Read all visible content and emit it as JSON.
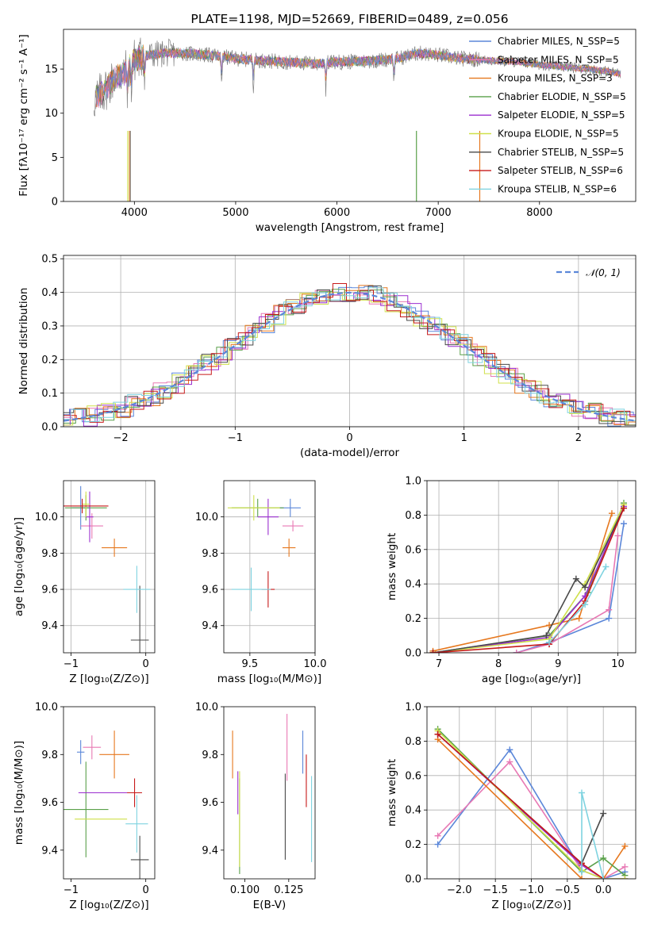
{
  "figure_title": "PLATE=1198, MJD=52669, FIBERID=0489, z=0.056",
  "colors": {
    "Chabrier MILES": "#5b87d9",
    "Salpeter MILES": "#e879b4",
    "Kroupa MILES": "#e6781f",
    "Chabrier ELODIE": "#5aa04a",
    "Salpeter ELODIE": "#9b2fd0",
    "Kroupa ELODIE": "#cfe04a",
    "Chabrier STELIB": "#4a4a4a",
    "Salpeter STELIB": "#c71a1a",
    "Kroupa STELIB": "#7fd3e0",
    "spectrum": "#808080",
    "normal_curve": "#5b87d9"
  },
  "chart_data": [
    {
      "id": "spectrum",
      "type": "line",
      "title": "PLATE=1198, MJD=52669, FIBERID=0489, z=0.056",
      "xlabel": "wavelength [Angstrom, rest frame]",
      "ylabel": "Flux [fλ10⁻¹⁷ erg cm⁻² s⁻¹ A⁻¹]",
      "xlim": [
        3300,
        8950
      ],
      "ylim": [
        0,
        19.5
      ],
      "xticks": [
        4000,
        5000,
        6000,
        7000,
        8000
      ],
      "yticks": [
        0,
        5,
        10,
        15
      ],
      "legend_position": "top-right",
      "legend": [
        "Chabrier MILES, N_SSP=5",
        "Salpeter MILES, N_SSP=5",
        "Kroupa MILES, N_SSP=3",
        "Chabrier ELODIE, N_SSP=5",
        "Salpeter ELODIE, N_SSP=5",
        "Kroupa ELODIE, N_SSP=5",
        "Chabrier STELIB, N_SSP=5",
        "Salpeter STELIB, N_SSP=6",
        "Kroupa STELIB, N_SSP=6"
      ],
      "continuum": {
        "x": [
          3600,
          3700,
          3800,
          3900,
          4000,
          4100,
          4300,
          4500,
          4800,
          5000,
          5200,
          5500,
          5800,
          6000,
          6300,
          6600,
          6800,
          7000,
          7200,
          7500,
          7800,
          8000,
          8300,
          8500,
          8800
        ],
        "y": [
          11.5,
          12.5,
          14.0,
          14.5,
          16.0,
          16.5,
          16.8,
          16.8,
          16.5,
          16.2,
          16.0,
          15.8,
          15.6,
          15.8,
          15.9,
          16.2,
          16.8,
          16.6,
          16.2,
          16.0,
          15.8,
          15.5,
          15.2,
          15.0,
          14.5
        ]
      }
    },
    {
      "id": "residuals",
      "type": "histogram",
      "xlabel": "(data-model)/error",
      "ylabel": "Normed distribution",
      "xlim": [
        -2.5,
        2.5
      ],
      "ylim": [
        0,
        0.51
      ],
      "xticks": [
        -2,
        -1,
        0,
        1,
        2
      ],
      "yticks": [
        0.0,
        0.1,
        0.2,
        0.3,
        0.4,
        0.5
      ],
      "grid": true,
      "legend_position": "top-right",
      "legend": [
        "𝒩(0, 1)"
      ]
    },
    {
      "id": "age-vs-Z",
      "type": "errorbar",
      "xlabel": "Z [log₁₀(Z/Z⊙)]",
      "ylabel": "age  [log₁₀(age/yr)]",
      "xlim": [
        -1.1,
        0.12
      ],
      "ylim": [
        9.25,
        10.2
      ],
      "xticks": [
        -1,
        0
      ],
      "yticks": [
        9.4,
        9.6,
        9.8,
        10.0
      ],
      "grid": true,
      "points": [
        {
          "model": "Chabrier MILES",
          "x": -0.87,
          "y": 10.05,
          "xerr": 0.12,
          "yerr": 0.12
        },
        {
          "model": "Salpeter MILES",
          "x": -0.72,
          "y": 9.95,
          "xerr": 0.15,
          "yerr": 0.07
        },
        {
          "model": "Kroupa MILES",
          "x": -0.42,
          "y": 9.83,
          "xerr": 0.17,
          "yerr": 0.05
        },
        {
          "model": "Chabrier ELODIE",
          "x": -0.8,
          "y": 10.05,
          "xerr": 0.28,
          "yerr": 0.07
        },
        {
          "model": "Salpeter ELODIE",
          "x": -0.75,
          "y": 10.0,
          "xerr": 0.05,
          "yerr": 0.14
        },
        {
          "model": "Kroupa ELODIE",
          "x": -0.8,
          "y": 10.07,
          "xerr": 0.05,
          "yerr": 0.07
        },
        {
          "model": "Chabrier STELIB",
          "x": -0.08,
          "y": 9.32,
          "xerr": 0.12,
          "yerr": 0.3
        },
        {
          "model": "Salpeter STELIB",
          "x": -0.85,
          "y": 10.06,
          "xerr": 0.35,
          "yerr": 0.04
        },
        {
          "model": "Kroupa STELIB",
          "x": -0.12,
          "y": 9.6,
          "xerr": 0.18,
          "yerr": 0.13
        }
      ]
    },
    {
      "id": "age-vs-mass",
      "type": "errorbar",
      "xlabel": "mass [log₁₀(M/M⊙)]",
      "ylabel": "",
      "xlim": [
        9.3,
        10.0
      ],
      "ylim": [
        9.25,
        10.2
      ],
      "xticks": [
        9.5,
        10.0
      ],
      "yticks": [
        9.4,
        9.6,
        9.8,
        10.0
      ],
      "grid": true,
      "points": [
        {
          "model": "Chabrier MILES",
          "x": 9.81,
          "y": 10.05,
          "xerr": 0.08,
          "yerr": 0.05
        },
        {
          "model": "Salpeter MILES",
          "x": 9.83,
          "y": 9.95,
          "xerr": 0.08,
          "yerr": 0.03
        },
        {
          "model": "Kroupa MILES",
          "x": 9.8,
          "y": 9.83,
          "xerr": 0.05,
          "yerr": 0.05
        },
        {
          "model": "Chabrier ELODIE",
          "x": 9.56,
          "y": 10.05,
          "xerr": 0.2,
          "yerr": 0.05
        },
        {
          "model": "Salpeter ELODIE",
          "x": 9.64,
          "y": 10.0,
          "xerr": 0.08,
          "yerr": 0.1
        },
        {
          "model": "Kroupa ELODIE",
          "x": 9.53,
          "y": 10.05,
          "xerr": 0.2,
          "yerr": 0.07
        },
        {
          "model": "Chabrier STELIB",
          "x": 9.36,
          "y": 9.32,
          "xerr": 0.0,
          "yerr": 0.0
        },
        {
          "model": "Salpeter STELIB",
          "x": 9.64,
          "y": 9.6,
          "xerr": 0.05,
          "yerr": 0.1
        },
        {
          "model": "Kroupa STELIB",
          "x": 9.51,
          "y": 9.6,
          "xerr": 0.15,
          "yerr": 0.12
        }
      ]
    },
    {
      "id": "massweight-vs-age",
      "type": "line",
      "xlabel": "age  [log₁₀(age/yr)]",
      "ylabel": "mass weight",
      "xlim": [
        6.8,
        10.3
      ],
      "ylim": [
        0,
        1.0
      ],
      "xticks": [
        7,
        8,
        9,
        10
      ],
      "yticks": [
        0.0,
        0.2,
        0.4,
        0.6,
        0.8,
        1.0
      ],
      "grid": true,
      "series": [
        {
          "model": "Chabrier MILES",
          "x": [
            8.3,
            8.85,
            9.85,
            10.1
          ],
          "y": [
            0.0,
            0.06,
            0.2,
            0.75
          ]
        },
        {
          "model": "Salpeter MILES",
          "x": [
            8.3,
            8.85,
            9.85,
            10.0
          ],
          "y": [
            0.0,
            0.05,
            0.25,
            0.68
          ]
        },
        {
          "model": "Kroupa MILES",
          "x": [
            6.9,
            8.85,
            9.35,
            9.9
          ],
          "y": [
            0.01,
            0.16,
            0.2,
            0.81
          ]
        },
        {
          "model": "Chabrier ELODIE",
          "x": [
            6.9,
            8.85,
            9.5,
            10.1
          ],
          "y": [
            0.0,
            0.1,
            0.35,
            0.87
          ]
        },
        {
          "model": "Salpeter ELODIE",
          "x": [
            6.9,
            8.85,
            9.45,
            10.1
          ],
          "y": [
            0.0,
            0.09,
            0.33,
            0.85
          ]
        },
        {
          "model": "Kroupa ELODIE",
          "x": [
            6.9,
            8.85,
            9.45,
            10.1
          ],
          "y": [
            0.0,
            0.08,
            0.4,
            0.86
          ]
        },
        {
          "model": "Chabrier STELIB",
          "x": [
            6.9,
            8.8,
            9.3,
            9.45,
            10.1
          ],
          "y": [
            0.0,
            0.1,
            0.43,
            0.38,
            0.84
          ]
        },
        {
          "model": "Salpeter STELIB",
          "x": [
            6.9,
            8.85,
            9.45,
            10.1
          ],
          "y": [
            0.0,
            0.05,
            0.3,
            0.84
          ]
        },
        {
          "model": "Kroupa STELIB",
          "x": [
            8.85,
            9.45,
            9.8
          ],
          "y": [
            0.06,
            0.28,
            0.5
          ]
        }
      ]
    },
    {
      "id": "mass-vs-Z",
      "type": "errorbar",
      "xlabel": "Z [log₁₀(Z/Z⊙)]",
      "ylabel": "mass [log₁₀(M/M⊙)]",
      "xlim": [
        -1.1,
        0.12
      ],
      "ylim": [
        9.28,
        10.0
      ],
      "xticks": [
        -1,
        0
      ],
      "yticks": [
        9.4,
        9.6,
        9.8,
        10.0
      ],
      "points": [
        {
          "model": "Chabrier MILES",
          "x": -0.87,
          "y": 9.81,
          "xerr": 0.05,
          "yerr": 0.05
        },
        {
          "model": "Salpeter MILES",
          "x": -0.72,
          "y": 9.83,
          "xerr": 0.12,
          "yerr": 0.05
        },
        {
          "model": "Kroupa MILES",
          "x": -0.42,
          "y": 9.8,
          "xerr": 0.2,
          "yerr": 0.1
        },
        {
          "model": "Chabrier ELODIE",
          "x": -0.8,
          "y": 9.57,
          "xerr": 0.3,
          "yerr": 0.2
        },
        {
          "model": "Salpeter ELODIE",
          "x": -0.55,
          "y": 9.64,
          "xerr": 0.35,
          "yerr": 0.0
        },
        {
          "model": "Kroupa ELODIE",
          "x": -0.6,
          "y": 9.53,
          "xerr": 0.35,
          "yerr": 0.0
        },
        {
          "model": "Chabrier STELIB",
          "x": -0.08,
          "y": 9.36,
          "xerr": 0.12,
          "yerr": 0.1
        },
        {
          "model": "Salpeter STELIB",
          "x": -0.15,
          "y": 9.64,
          "xerr": 0.1,
          "yerr": 0.06
        },
        {
          "model": "Kroupa STELIB",
          "x": -0.12,
          "y": 9.51,
          "xerr": 0.15,
          "yerr": 0.12
        }
      ]
    },
    {
      "id": "mass-vs-EBV",
      "type": "errorbar",
      "xlabel": "E(B-V)",
      "ylabel": "",
      "xlim": [
        0.088,
        0.14
      ],
      "ylim": [
        9.28,
        10.0
      ],
      "xticks": [
        0.1,
        0.125
      ],
      "xticklabels": [
        "0.100",
        "0.125"
      ],
      "yticks": [
        9.4,
        9.6,
        9.8,
        10.0
      ],
      "points": [
        {
          "model": "Chabrier MILES",
          "x": 0.133,
          "y": 9.81,
          "xerr": 0,
          "yerr": 0.09
        },
        {
          "model": "Salpeter MILES",
          "x": 0.124,
          "y": 9.83,
          "xerr": 0,
          "yerr": 0.14
        },
        {
          "model": "Kroupa MILES",
          "x": 0.093,
          "y": 9.8,
          "xerr": 0,
          "yerr": 0.1
        },
        {
          "model": "Chabrier ELODIE",
          "x": 0.097,
          "y": 9.5,
          "xerr": 0,
          "yerr": 0.2
        },
        {
          "model": "Salpeter ELODIE",
          "x": 0.096,
          "y": 9.64,
          "xerr": 0,
          "yerr": 0.09
        },
        {
          "model": "Kroupa ELODIE",
          "x": 0.097,
          "y": 9.53,
          "xerr": 0,
          "yerr": 0.2
        },
        {
          "model": "Chabrier STELIB",
          "x": 0.123,
          "y": 9.54,
          "xerr": 0,
          "yerr": 0.18
        },
        {
          "model": "Salpeter STELIB",
          "x": 0.135,
          "y": 9.69,
          "xerr": 0,
          "yerr": 0.11
        },
        {
          "model": "Kroupa STELIB",
          "x": 0.138,
          "y": 9.53,
          "xerr": 0,
          "yerr": 0.18
        }
      ]
    },
    {
      "id": "massweight-vs-Z",
      "type": "line",
      "xlabel": "Z [log₁₀(Z/Z⊙)]",
      "ylabel": "mass weight",
      "xlim": [
        -2.45,
        0.45
      ],
      "ylim": [
        0,
        1.0
      ],
      "xticks": [
        -2.0,
        -1.5,
        -1.0,
        -0.5,
        0.0
      ],
      "yticks": [
        0.0,
        0.2,
        0.4,
        0.6,
        0.8,
        1.0
      ],
      "grid": true,
      "series": [
        {
          "model": "Chabrier MILES",
          "x": [
            -2.3,
            -1.3,
            -0.3,
            0.0,
            0.3
          ],
          "y": [
            0.2,
            0.75,
            0.05,
            0.0,
            0.04
          ]
        },
        {
          "model": "Salpeter MILES",
          "x": [
            -2.3,
            -1.3,
            -0.3,
            0.0,
            0.3
          ],
          "y": [
            0.25,
            0.68,
            0.05,
            0.0,
            0.07
          ]
        },
        {
          "model": "Kroupa MILES",
          "x": [
            -2.3,
            -0.3,
            0.0,
            0.3
          ],
          "y": [
            0.81,
            0.0,
            0.0,
            0.19
          ]
        },
        {
          "model": "Chabrier ELODIE",
          "x": [
            -2.3,
            -0.3,
            0.0,
            0.3
          ],
          "y": [
            0.87,
            0.04,
            0.12,
            0.02
          ]
        },
        {
          "model": "Salpeter ELODIE",
          "x": [
            -2.3,
            -0.3,
            0.0,
            0.3
          ],
          "y": [
            0.84,
            0.08,
            0.0,
            0.0
          ]
        },
        {
          "model": "Kroupa ELODIE",
          "x": [
            -2.3,
            -0.3,
            0.0,
            0.3
          ],
          "y": [
            0.86,
            0.05,
            0.0,
            0.0
          ]
        },
        {
          "model": "Chabrier STELIB",
          "x": [
            -2.3,
            -0.3,
            0.0
          ],
          "y": [
            0.84,
            0.09,
            0.38
          ]
        },
        {
          "model": "Salpeter STELIB",
          "x": [
            -2.3,
            -0.3,
            0.0
          ],
          "y": [
            0.84,
            0.09,
            0.0
          ]
        },
        {
          "model": "Kroupa STELIB",
          "x": [
            -0.3,
            -0.3,
            0.0
          ],
          "y": [
            0.04,
            0.5,
            0.0
          ]
        }
      ]
    }
  ]
}
